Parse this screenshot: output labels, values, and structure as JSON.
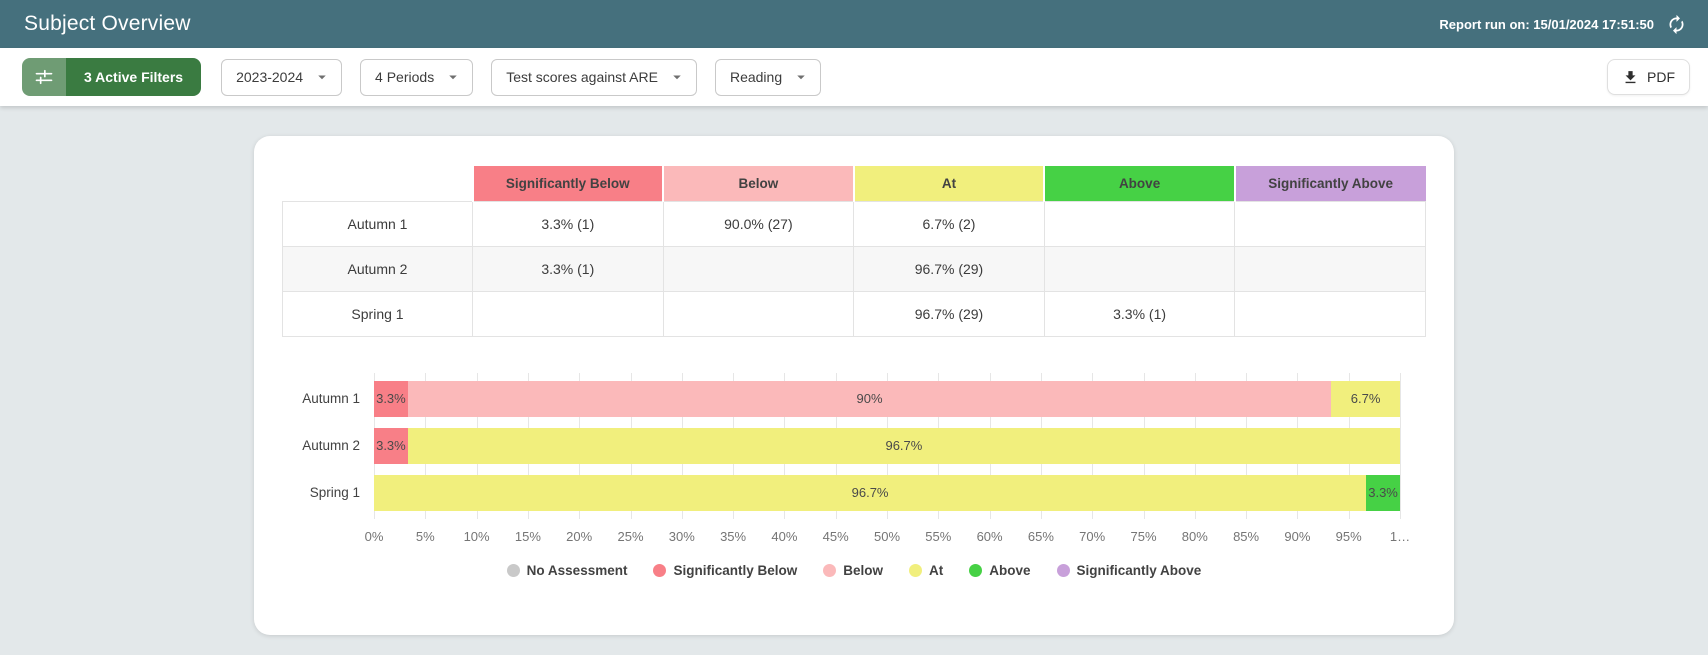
{
  "header": {
    "title": "Subject Overview",
    "report_run": "Report run on: 15/01/2024 17:51:50"
  },
  "toolbar": {
    "active_filters_label": "3 Active Filters",
    "dropdowns": [
      {
        "name": "academic-year",
        "value": "2023-2024"
      },
      {
        "name": "periods",
        "value": "4 Periods"
      },
      {
        "name": "comparison",
        "value": "Test scores against ARE"
      },
      {
        "name": "subject",
        "value": "Reading"
      }
    ],
    "pdf_label": "PDF"
  },
  "colors": {
    "topbar": "#45707d",
    "filter_icon_bg": "#6f9c74",
    "filter_label_bg": "#3a7b41",
    "status": {
      "No Assessment": "#c9c9c9",
      "Significantly Below": "#f87f87",
      "Below": "#fbb9ba",
      "At": "#f1ef7d",
      "Above": "#46d145",
      "Significantly Above": "#c8a0da"
    }
  },
  "table": {
    "column_headers": [
      "Significantly Below",
      "Below",
      "At",
      "Above",
      "Significantly Above"
    ],
    "rows": [
      {
        "label": "Autumn 1",
        "cells": [
          "3.3% (1)",
          "90.0% (27)",
          "6.7% (2)",
          "",
          ""
        ]
      },
      {
        "label": "Autumn 2",
        "cells": [
          "3.3% (1)",
          "",
          "96.7% (29)",
          "",
          ""
        ]
      },
      {
        "label": "Spring 1",
        "cells": [
          "",
          "",
          "96.7% (29)",
          "3.3% (1)",
          ""
        ]
      }
    ]
  },
  "chart_data": {
    "type": "bar",
    "orientation": "horizontal",
    "stacked": true,
    "grid": true,
    "categories": [
      "Autumn 1",
      "Autumn 2",
      "Spring 1"
    ],
    "series": [
      {
        "name": "No Assessment",
        "values": [
          0,
          0,
          0
        ]
      },
      {
        "name": "Significantly Below",
        "values": [
          3.3,
          3.3,
          0
        ]
      },
      {
        "name": "Below",
        "values": [
          90,
          0,
          0
        ]
      },
      {
        "name": "At",
        "values": [
          6.7,
          96.7,
          96.7
        ]
      },
      {
        "name": "Above",
        "values": [
          0,
          0,
          3.3
        ]
      },
      {
        "name": "Significantly Above",
        "values": [
          0,
          0,
          0
        ]
      }
    ],
    "rows": [
      {
        "label": "Autumn 1",
        "segments": [
          {
            "status": "Significantly Below",
            "value": 3.3,
            "label": "3.3%"
          },
          {
            "status": "Below",
            "value": 90,
            "label": "90%"
          },
          {
            "status": "At",
            "value": 6.7,
            "label": "6.7%"
          }
        ]
      },
      {
        "label": "Autumn 2",
        "segments": [
          {
            "status": "Significantly Below",
            "value": 3.3,
            "label": "3.3%"
          },
          {
            "status": "At",
            "value": 96.7,
            "label": "96.7%"
          }
        ]
      },
      {
        "label": "Spring 1",
        "segments": [
          {
            "status": "At",
            "value": 96.7,
            "label": "96.7%"
          },
          {
            "status": "Above",
            "value": 3.3,
            "label": "3.3%"
          }
        ]
      }
    ],
    "xlim": [
      0,
      100
    ],
    "x_ticks": [
      "0%",
      "5%",
      "10%",
      "15%",
      "20%",
      "25%",
      "30%",
      "35%",
      "40%",
      "45%",
      "50%",
      "55%",
      "60%",
      "65%",
      "70%",
      "75%",
      "80%",
      "85%",
      "90%",
      "95%",
      "1…"
    ],
    "legend_position": "bottom",
    "legend": [
      "No Assessment",
      "Significantly Below",
      "Below",
      "At",
      "Above",
      "Significantly Above"
    ]
  }
}
